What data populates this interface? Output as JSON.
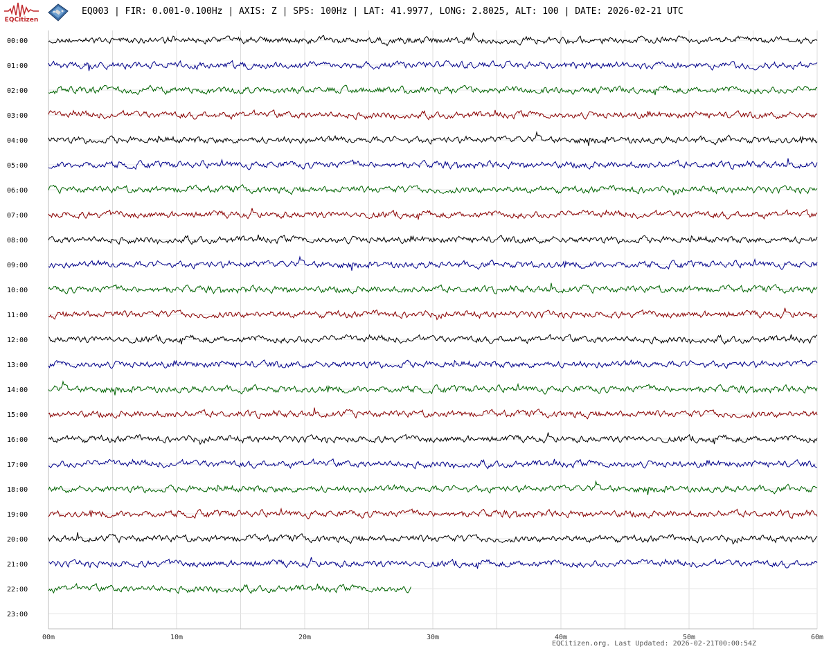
{
  "header": {
    "title": "EQ003 | FIR: 0.001-0.100Hz | AXIS: Z | SPS: 100Hz | LAT: 41.9977, LONG: 2.8025, ALT: 100 | DATE: 2026-02-21 UTC",
    "logo_text": "EQCitizen"
  },
  "footer": {
    "text": "EQCitizen.org. Last Updated: 2026-02-21T00:00:54Z"
  },
  "chart_data": {
    "type": "line",
    "title": "EQ003 | FIR: 0.001-0.100Hz | AXIS: Z | SPS: 100Hz | LAT: 41.9977, LONG: 2.8025, ALT: 100 | DATE: 2026-02-21 UTC",
    "xlabel": "",
    "ylabel": "",
    "x_ticks": [
      "00m",
      "10m",
      "20m",
      "30m",
      "40m",
      "50m",
      "60m"
    ],
    "xlim_minutes": [
      0,
      60
    ],
    "row_labels": [
      "00:00",
      "01:00",
      "02:00",
      "03:00",
      "04:00",
      "05:00",
      "06:00",
      "07:00",
      "08:00",
      "09:00",
      "10:00",
      "11:00",
      "12:00",
      "13:00",
      "14:00",
      "15:00",
      "16:00",
      "17:00",
      "18:00",
      "19:00",
      "20:00",
      "21:00",
      "22:00",
      "23:00"
    ],
    "row_colors": [
      "#000000",
      "#00008b",
      "#006400",
      "#8b0000"
    ],
    "grid": true,
    "minor_grid_interval_minutes": 5,
    "rows_complete": 22,
    "partial_row_end_minutes": 28.3,
    "empty_rows": 1
  }
}
